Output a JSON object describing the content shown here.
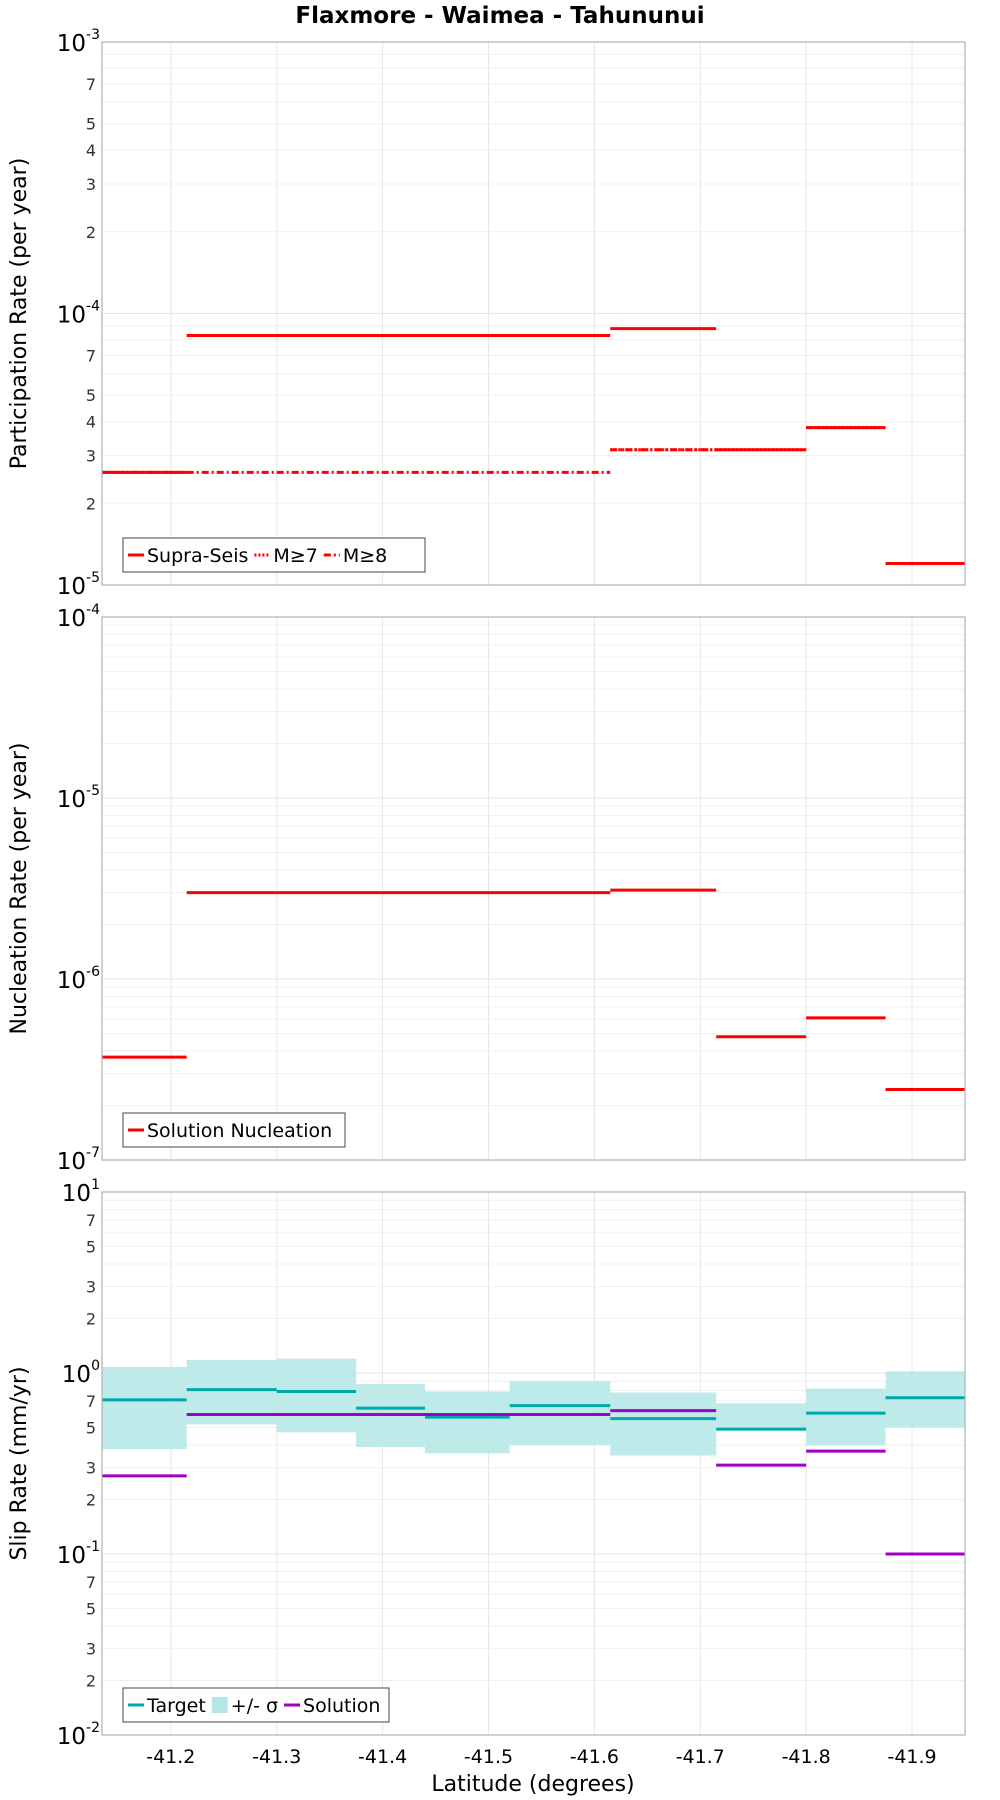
{
  "title": "Flaxmore - Waimea - Tahununui",
  "xlabel": "Latitude (degrees)",
  "x_ticks": [
    -41.2,
    -41.3,
    -41.4,
    -41.5,
    -41.6,
    -41.7,
    -41.8,
    -41.9
  ],
  "x_tick_labels": [
    "-41.2",
    "-41.3",
    "-41.4",
    "-41.5",
    "-41.6",
    "-41.7",
    "-41.8",
    "-41.9"
  ],
  "xlim": [
    -41.135,
    -41.95
  ],
  "chart_data": [
    {
      "type": "line",
      "ylabel": "Participation Rate (per year)",
      "yscale": "log",
      "ylim": [
        1e-05,
        0.001
      ],
      "major_ticks": [
        {
          "base": "10",
          "exp": "-5"
        },
        {
          "base": "10",
          "exp": "-4"
        },
        {
          "base": "10",
          "exp": "-3"
        }
      ],
      "minor_tick_labels": [
        "2",
        "3",
        "4",
        "5",
        "7"
      ],
      "grid": true,
      "legend": "bottom-left",
      "series": [
        {
          "name": "Supra-Seis",
          "color": "#ff0000",
          "dash": "solid",
          "segments": [
            {
              "x": [
                -41.135,
                -41.215
              ],
              "y": 2.6e-05
            },
            {
              "x": [
                -41.215,
                -41.615
              ],
              "y": 8.3e-05
            },
            {
              "x": [
                -41.615,
                -41.715
              ],
              "y": 8.8e-05
            },
            {
              "x": [
                -41.715,
                -41.8
              ],
              "y": 3.15e-05
            },
            {
              "x": [
                -41.8,
                -41.875
              ],
              "y": 3.8e-05
            },
            {
              "x": [
                -41.875,
                -41.95
              ],
              "y": 1.2e-05
            }
          ]
        },
        {
          "name": "M≥7",
          "color": "#ff0000",
          "dash": "dotted",
          "segments": [
            {
              "x": [
                -41.135,
                -41.215
              ],
              "y": 2.6e-05
            },
            {
              "x": [
                -41.215,
                -41.615
              ],
              "y": 8.3e-05
            },
            {
              "x": [
                -41.615,
                -41.715
              ],
              "y": 3.15e-05
            },
            {
              "x": [
                -41.715,
                -41.8
              ],
              "y": 3.15e-05
            },
            {
              "x": [
                -41.8,
                -41.875
              ],
              "y": 3.8e-05
            }
          ]
        },
        {
          "name": "M≥8",
          "color": "#ff0000",
          "dash": "dashdot",
          "segments": [
            {
              "x": [
                -41.135,
                -41.215
              ],
              "y": 2.6e-05
            },
            {
              "x": [
                -41.215,
                -41.615
              ],
              "y": 2.6e-05
            },
            {
              "x": [
                -41.615,
                -41.715
              ],
              "y": 3.15e-05
            }
          ]
        }
      ]
    },
    {
      "type": "line",
      "ylabel": "Nucleation Rate (per year)",
      "yscale": "log",
      "ylim": [
        1e-07,
        0.0001
      ],
      "major_ticks": [
        {
          "base": "10",
          "exp": "-7"
        },
        {
          "base": "10",
          "exp": "-6"
        },
        {
          "base": "10",
          "exp": "-5"
        },
        {
          "base": "10",
          "exp": "-4"
        }
      ],
      "minor_tick_labels": [],
      "grid": true,
      "legend": "bottom-left",
      "series": [
        {
          "name": "Solution Nucleation",
          "color": "#ff0000",
          "dash": "solid",
          "segments": [
            {
              "x": [
                -41.135,
                -41.215
              ],
              "y": 3.7e-07
            },
            {
              "x": [
                -41.215,
                -41.615
              ],
              "y": 3e-06
            },
            {
              "x": [
                -41.615,
                -41.715
              ],
              "y": 3.1e-06
            },
            {
              "x": [
                -41.715,
                -41.8
              ],
              "y": 4.8e-07
            },
            {
              "x": [
                -41.8,
                -41.875
              ],
              "y": 6.1e-07
            },
            {
              "x": [
                -41.875,
                -41.95
              ],
              "y": 2.45e-07
            }
          ]
        }
      ]
    },
    {
      "type": "line",
      "ylabel": "Slip Rate (mm/yr)",
      "yscale": "log",
      "ylim": [
        0.01,
        10
      ],
      "major_ticks": [
        {
          "base": "10",
          "exp": "-2"
        },
        {
          "base": "10",
          "exp": "-1"
        },
        {
          "base": "10",
          "exp": "0"
        },
        {
          "base": "10",
          "exp": "1"
        }
      ],
      "minor_tick_labels": [
        "2",
        "3",
        "5",
        "7"
      ],
      "grid": true,
      "legend": "bottom-left",
      "band": {
        "name": "+/- σ",
        "color": "#b3e6e6",
        "segments": [
          {
            "x": [
              -41.135,
              -41.215
            ],
            "lo": 0.38,
            "hi": 1.08
          },
          {
            "x": [
              -41.215,
              -41.3
            ],
            "lo": 0.52,
            "hi": 1.18
          },
          {
            "x": [
              -41.3,
              -41.375
            ],
            "lo": 0.47,
            "hi": 1.2
          },
          {
            "x": [
              -41.375,
              -41.44
            ],
            "lo": 0.39,
            "hi": 0.87
          },
          {
            "x": [
              -41.44,
              -41.52
            ],
            "lo": 0.36,
            "hi": 0.79
          },
          {
            "x": [
              -41.52,
              -41.615
            ],
            "lo": 0.4,
            "hi": 0.9
          },
          {
            "x": [
              -41.615,
              -41.715
            ],
            "lo": 0.35,
            "hi": 0.78
          },
          {
            "x": [
              -41.715,
              -41.8
            ],
            "lo": 0.5,
            "hi": 0.68
          },
          {
            "x": [
              -41.8,
              -41.875
            ],
            "lo": 0.4,
            "hi": 0.82
          },
          {
            "x": [
              -41.875,
              -41.95
            ],
            "lo": 0.5,
            "hi": 1.02
          }
        ]
      },
      "series": [
        {
          "name": "Target",
          "color": "#00a8a8",
          "dash": "solid",
          "segments": [
            {
              "x": [
                -41.135,
                -41.215
              ],
              "y": 0.71
            },
            {
              "x": [
                -41.215,
                -41.3
              ],
              "y": 0.81
            },
            {
              "x": [
                -41.3,
                -41.375
              ],
              "y": 0.79
            },
            {
              "x": [
                -41.375,
                -41.44
              ],
              "y": 0.64
            },
            {
              "x": [
                -41.44,
                -41.52
              ],
              "y": 0.57
            },
            {
              "x": [
                -41.52,
                -41.615
              ],
              "y": 0.66
            },
            {
              "x": [
                -41.615,
                -41.715
              ],
              "y": 0.56
            },
            {
              "x": [
                -41.715,
                -41.8
              ],
              "y": 0.49
            },
            {
              "x": [
                -41.8,
                -41.875
              ],
              "y": 0.6
            },
            {
              "x": [
                -41.875,
                -41.95
              ],
              "y": 0.73
            }
          ]
        },
        {
          "name": "Solution",
          "color": "#a000c8",
          "dash": "solid",
          "segments": [
            {
              "x": [
                -41.135,
                -41.215
              ],
              "y": 0.27
            },
            {
              "x": [
                -41.215,
                -41.615
              ],
              "y": 0.59
            },
            {
              "x": [
                -41.615,
                -41.715
              ],
              "y": 0.62
            },
            {
              "x": [
                -41.715,
                -41.8
              ],
              "y": 0.31
            },
            {
              "x": [
                -41.8,
                -41.875
              ],
              "y": 0.37
            },
            {
              "x": [
                -41.875,
                -41.95
              ],
              "y": 0.1
            }
          ]
        }
      ]
    }
  ]
}
